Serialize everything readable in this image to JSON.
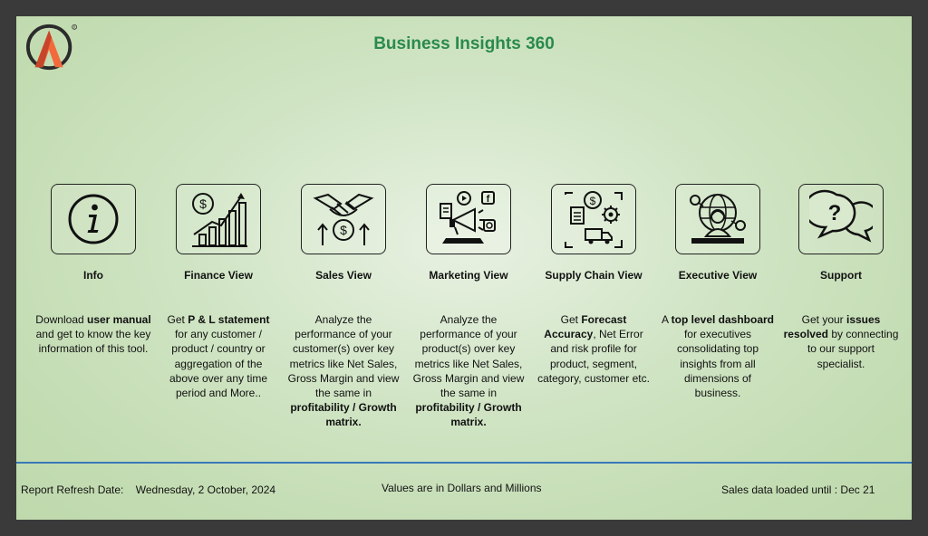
{
  "header": {
    "title": "Business Insights 360"
  },
  "tiles": [
    {
      "icon": "info-icon",
      "label": "Info",
      "desc": [
        {
          "t": "Download "
        },
        {
          "t": "user manual",
          "b": true
        },
        {
          "t": " and get to know the key information of this tool."
        }
      ]
    },
    {
      "icon": "finance-chart-icon",
      "label": "Finance View",
      "desc": [
        {
          "t": "Get "
        },
        {
          "t": " P & L statement",
          "b": true
        },
        {
          "t": " for any customer / product / country or aggregation of the above over any time period and More.."
        }
      ]
    },
    {
      "icon": "handshake-icon",
      "label": "Sales View",
      "desc": [
        {
          "t": "Analyze the performance of your customer(s) over key metrics like Net Sales, Gross Margin and view the same in "
        },
        {
          "t": "profitability / Growth matrix.",
          "b": true
        }
      ]
    },
    {
      "icon": "megaphone-icon",
      "label": "Marketing View",
      "desc": [
        {
          "t": "Analyze the performance of your product(s) over key metrics like Net Sales, Gross Margin and view the same in "
        },
        {
          "t": "profitability / Growth matrix.",
          "b": true
        }
      ]
    },
    {
      "icon": "supply-chain-icon",
      "label": "Supply Chain View",
      "desc": [
        {
          "t": "Get "
        },
        {
          "t": "Forecast Accuracy",
          "b": true
        },
        {
          "t": ", Net Error and risk profile for product, segment, category, customer etc."
        }
      ]
    },
    {
      "icon": "executive-icon",
      "label": "Executive View",
      "desc": [
        {
          "t": "A "
        },
        {
          "t": "top level dashboard",
          "b": true
        },
        {
          "t": " for executives consolidating top insights from all dimensions of business."
        }
      ]
    },
    {
      "icon": "support-chat-icon",
      "label": "Support",
      "desc": [
        {
          "t": "Get your "
        },
        {
          "t": "issues resolved",
          "b": true
        },
        {
          "t": " by connecting to our support specialist."
        }
      ]
    }
  ],
  "footer": {
    "refresh_label": "Report Refresh Date:",
    "refresh_date": "Wednesday, 2 October, 2024",
    "units_note": "Values are in Dollars and Millions",
    "sales_loaded": "Sales data loaded until : Dec 21"
  },
  "colors": {
    "title": "#2a8a4c",
    "divider": "#3a78b8",
    "logo_orange": "#f26a3b",
    "logo_dark": "#2b2b2b"
  }
}
